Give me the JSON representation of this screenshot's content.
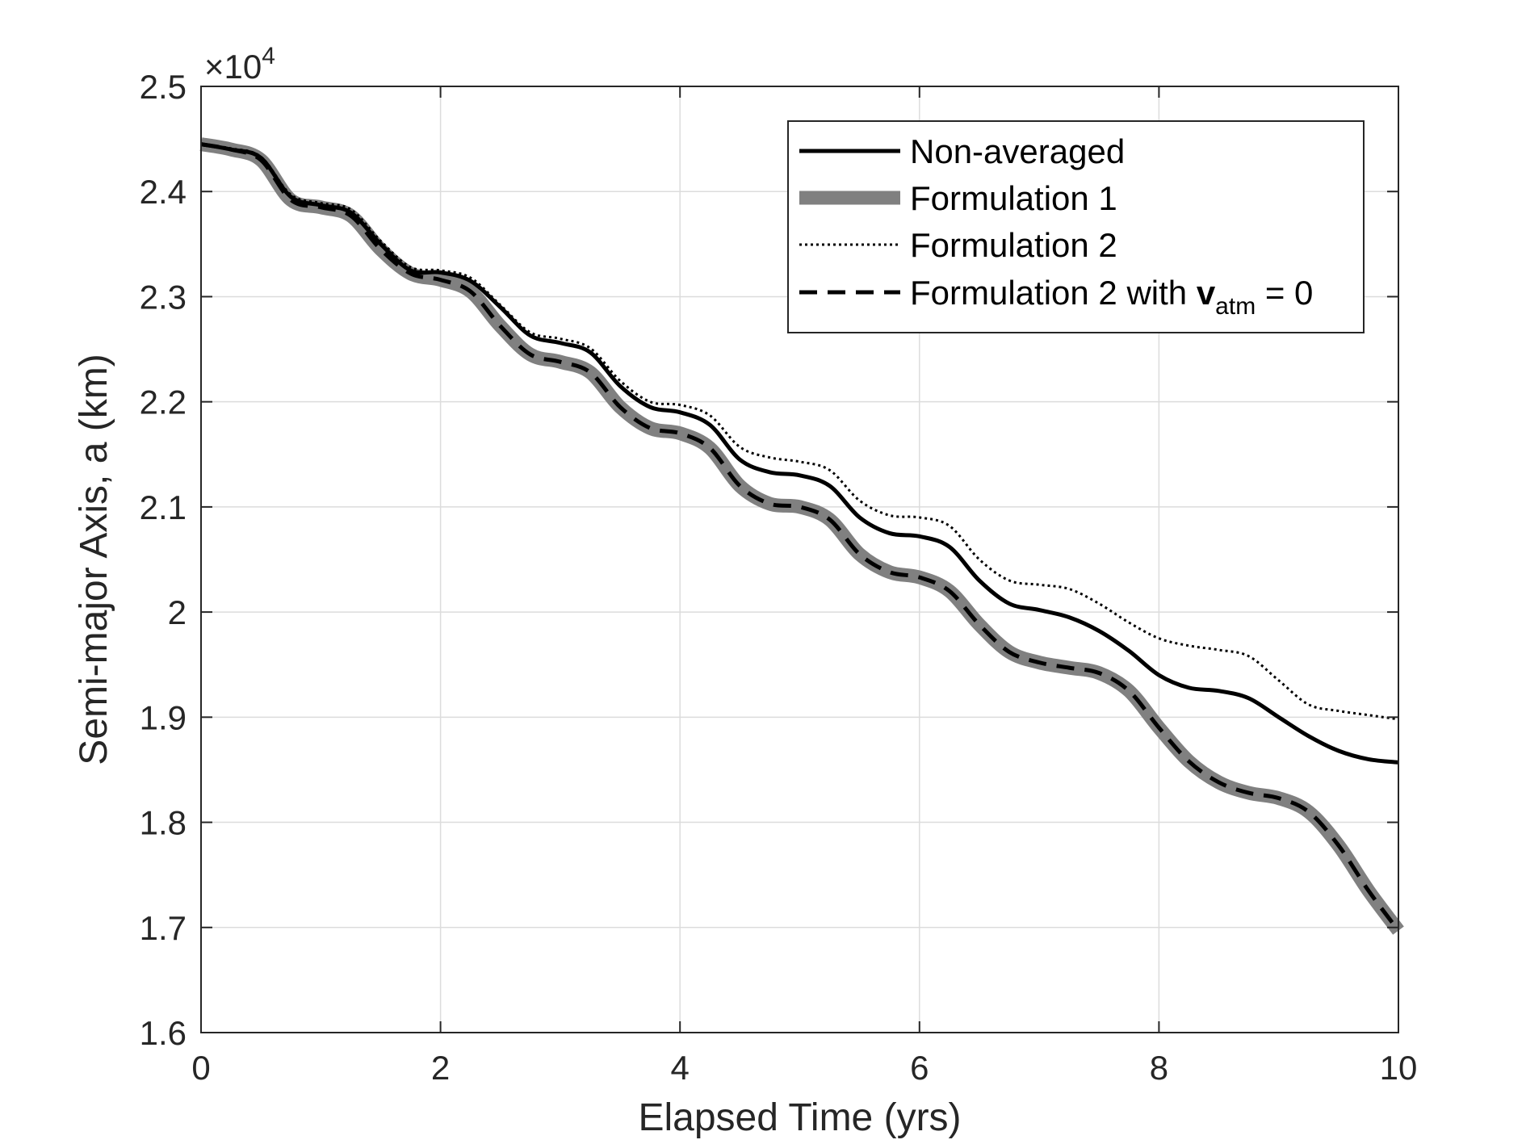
{
  "chart_data": {
    "type": "line",
    "title": "",
    "xlabel": "Elapsed Time (yrs)",
    "ylabel": "Semi-major Axis, a (km)",
    "xlim": [
      0,
      10
    ],
    "ylim": [
      1.6,
      2.5
    ],
    "y_multiplier_label": {
      "base": "×10",
      "exponent": "4"
    },
    "x_ticks": [
      "0",
      "2",
      "4",
      "6",
      "8",
      "10"
    ],
    "y_ticks": [
      "1.6",
      "1.7",
      "1.8",
      "1.9",
      "2",
      "2.1",
      "2.2",
      "2.3",
      "2.4",
      "2.5"
    ],
    "grid": true,
    "legend_position": "top-right",
    "series": [
      {
        "name": "Non-averaged",
        "style": "solid",
        "color": "#000000",
        "x": [
          0,
          0.25,
          0.5,
          0.75,
          1,
          1.25,
          1.5,
          1.75,
          2,
          2.25,
          2.5,
          2.75,
          3,
          3.25,
          3.5,
          3.75,
          4,
          4.25,
          4.5,
          4.75,
          5,
          5.25,
          5.5,
          5.75,
          6,
          6.25,
          6.5,
          6.75,
          7,
          7.25,
          7.5,
          7.75,
          8,
          8.25,
          8.5,
          8.75,
          9,
          9.25,
          9.5,
          9.75,
          10
        ],
        "y": [
          2.445,
          2.44,
          2.432,
          2.395,
          2.387,
          2.38,
          2.35,
          2.325,
          2.323,
          2.315,
          2.29,
          2.263,
          2.256,
          2.247,
          2.215,
          2.195,
          2.19,
          2.178,
          2.145,
          2.133,
          2.13,
          2.12,
          2.09,
          2.075,
          2.072,
          2.062,
          2.03,
          2.008,
          2.002,
          1.995,
          1.982,
          1.963,
          1.94,
          1.928,
          1.925,
          1.918,
          1.9,
          1.882,
          1.868,
          1.86,
          1.857
        ]
      },
      {
        "name": "Formulation 1",
        "style": "thick-gray",
        "color": "#808080",
        "x": [
          0,
          0.25,
          0.5,
          0.75,
          1,
          1.25,
          1.5,
          1.75,
          2,
          2.25,
          2.5,
          2.75,
          3,
          3.25,
          3.5,
          3.75,
          4,
          4.25,
          4.5,
          4.75,
          5,
          5.25,
          5.5,
          5.75,
          6,
          6.25,
          6.5,
          6.75,
          7,
          7.25,
          7.5,
          7.75,
          8,
          8.25,
          8.5,
          8.75,
          9,
          9.25,
          9.5,
          9.75,
          10
        ],
        "y": [
          2.445,
          2.44,
          2.43,
          2.392,
          2.385,
          2.377,
          2.345,
          2.322,
          2.316,
          2.305,
          2.272,
          2.245,
          2.238,
          2.228,
          2.195,
          2.175,
          2.17,
          2.156,
          2.12,
          2.103,
          2.1,
          2.088,
          2.055,
          2.038,
          2.033,
          2.02,
          1.988,
          1.962,
          1.952,
          1.947,
          1.942,
          1.925,
          1.89,
          1.858,
          1.838,
          1.828,
          1.823,
          1.81,
          1.778,
          1.735,
          1.697
        ]
      },
      {
        "name": "Formulation 2",
        "style": "dotted",
        "color": "#000000",
        "x": [
          0,
          0.25,
          0.5,
          0.75,
          1,
          1.25,
          1.5,
          1.75,
          2,
          2.25,
          2.5,
          2.75,
          3,
          3.25,
          3.5,
          3.75,
          4,
          4.25,
          4.5,
          4.75,
          5,
          5.25,
          5.5,
          5.75,
          6,
          6.25,
          6.5,
          6.75,
          7,
          7.25,
          7.5,
          7.75,
          8,
          8.25,
          8.5,
          8.75,
          9,
          9.25,
          9.5,
          9.75,
          10
        ],
        "y": [
          2.445,
          2.441,
          2.433,
          2.397,
          2.389,
          2.383,
          2.353,
          2.328,
          2.325,
          2.318,
          2.292,
          2.266,
          2.26,
          2.251,
          2.22,
          2.2,
          2.197,
          2.187,
          2.157,
          2.147,
          2.143,
          2.135,
          2.106,
          2.092,
          2.09,
          2.082,
          2.05,
          2.03,
          2.026,
          2.022,
          2.008,
          1.99,
          1.975,
          1.968,
          1.964,
          1.958,
          1.935,
          1.912,
          1.906,
          1.902,
          1.898
        ]
      },
      {
        "name": "Formulation 2 with v",
        "name_subscript": "atm",
        "name_suffix": " = 0",
        "style": "dashed",
        "color": "#000000",
        "x": [
          0,
          0.25,
          0.5,
          0.75,
          1,
          1.25,
          1.5,
          1.75,
          2,
          2.25,
          2.5,
          2.75,
          3,
          3.25,
          3.5,
          3.75,
          4,
          4.25,
          4.5,
          4.75,
          5,
          5.25,
          5.5,
          5.75,
          6,
          6.25,
          6.5,
          6.75,
          7,
          7.25,
          7.5,
          7.75,
          8,
          8.25,
          8.5,
          8.75,
          9,
          9.25,
          9.5,
          9.75,
          10
        ],
        "y": [
          2.445,
          2.44,
          2.43,
          2.392,
          2.385,
          2.377,
          2.345,
          2.322,
          2.316,
          2.305,
          2.272,
          2.245,
          2.238,
          2.228,
          2.195,
          2.175,
          2.17,
          2.156,
          2.12,
          2.103,
          2.1,
          2.088,
          2.055,
          2.038,
          2.033,
          2.02,
          1.988,
          1.962,
          1.952,
          1.947,
          1.942,
          1.925,
          1.89,
          1.858,
          1.838,
          1.828,
          1.823,
          1.81,
          1.778,
          1.735,
          1.697
        ]
      }
    ]
  }
}
